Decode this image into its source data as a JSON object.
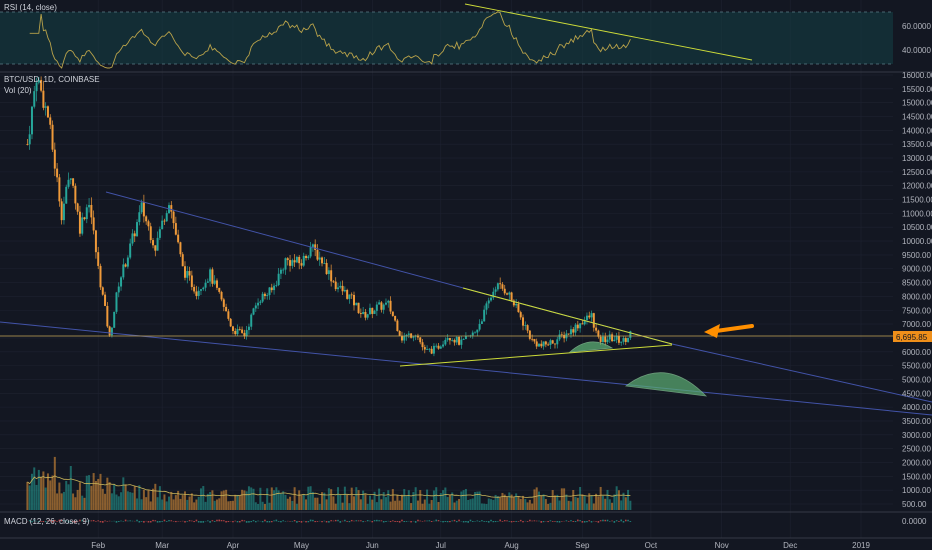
{
  "colors": {
    "background": "#131722",
    "grid": "#1e2230",
    "up": "#26a69a",
    "down": "#ef9a3a",
    "rsi_line": "#b8a24a",
    "rsi_band": "#1b5e63",
    "trend_blue": "#3f51b5",
    "trend_yellow": "#cddc39",
    "price_line": "#c8a95a",
    "price_tag": "#ef8f1a",
    "arrow": "#ff8f00",
    "projection": "#5cae74"
  },
  "rsi_pane": {
    "label": "RSI (14, close)",
    "ticks": [
      "60.0000",
      "40.0000"
    ]
  },
  "price_pane": {
    "symbol_label": "BTC/USD, 1D, COINBASE",
    "volume_label": "Vol (20)",
    "price_tag": "6,695.85"
  },
  "macd_pane": {
    "label": "MACD (12, 26, close, 9)",
    "ticks": [
      "0.0000"
    ]
  },
  "chart_data": {
    "type": "candlestick",
    "title": "BTC/USD, 1D, COINBASE",
    "x_ticks": [
      "Feb",
      "Mar",
      "Apr",
      "May",
      "Jun",
      "Jul",
      "Aug",
      "Sep",
      "Oct",
      "Nov",
      "Dec",
      "2019"
    ],
    "y_ticks": [
      "16000.00",
      "15500.00",
      "15000.00",
      "14500.00",
      "14000.00",
      "13500.00",
      "13000.00",
      "12500.00",
      "12000.00",
      "11500.00",
      "11000.00",
      "10500.00",
      "10000.00",
      "9500.00",
      "9000.00",
      "8500.00",
      "8000.00",
      "7500.00",
      "7000.00",
      "6500.00",
      "6000.00",
      "5500.00",
      "5000.00",
      "4500.00",
      "4000.00",
      "3500.00",
      "3000.00",
      "2500.00",
      "2000.00",
      "1500.00",
      "1000.00",
      "500.00"
    ],
    "ylim": [
      500,
      16000
    ],
    "price_path": [
      [
        "2018-01-01",
        13500
      ],
      [
        "2018-01-05",
        16000
      ],
      [
        "2018-01-10",
        14500
      ],
      [
        "2018-01-16",
        11000
      ],
      [
        "2018-01-20",
        12500
      ],
      [
        "2018-01-24",
        10500
      ],
      [
        "2018-01-28",
        11500
      ],
      [
        "2018-02-01",
        9000
      ],
      [
        "2018-02-06",
        6500
      ],
      [
        "2018-02-10",
        8500
      ],
      [
        "2018-02-14",
        9500
      ],
      [
        "2018-02-20",
        11200
      ],
      [
        "2018-02-26",
        9800
      ],
      [
        "2018-03-04",
        11500
      ],
      [
        "2018-03-10",
        9000
      ],
      [
        "2018-03-16",
        8200
      ],
      [
        "2018-03-22",
        8800
      ],
      [
        "2018-03-28",
        7600
      ],
      [
        "2018-04-01",
        6800
      ],
      [
        "2018-04-06",
        6600
      ],
      [
        "2018-04-12",
        7900
      ],
      [
        "2018-04-18",
        8200
      ],
      [
        "2018-04-24",
        9300
      ],
      [
        "2018-05-01",
        9200
      ],
      [
        "2018-05-05",
        9800
      ],
      [
        "2018-05-10",
        9300
      ],
      [
        "2018-05-16",
        8400
      ],
      [
        "2018-05-22",
        8000
      ],
      [
        "2018-05-28",
        7300
      ],
      [
        "2018-06-03",
        7600
      ],
      [
        "2018-06-08",
        7700
      ],
      [
        "2018-06-14",
        6500
      ],
      [
        "2018-06-20",
        6700
      ],
      [
        "2018-06-24",
        6000
      ],
      [
        "2018-06-29",
        6100
      ],
      [
        "2018-07-04",
        6600
      ],
      [
        "2018-07-10",
        6300
      ],
      [
        "2018-07-16",
        6700
      ],
      [
        "2018-07-20",
        7400
      ],
      [
        "2018-07-25",
        8400
      ],
      [
        "2018-07-30",
        8200
      ],
      [
        "2018-08-04",
        7400
      ],
      [
        "2018-08-10",
        6400
      ],
      [
        "2018-08-14",
        6200
      ],
      [
        "2018-08-20",
        6400
      ],
      [
        "2018-08-26",
        6700
      ],
      [
        "2018-09-01",
        7100
      ],
      [
        "2018-09-05",
        7300
      ],
      [
        "2018-09-08",
        6400
      ],
      [
        "2018-09-13",
        6500
      ],
      [
        "2018-09-19",
        6400
      ],
      [
        "2018-09-22",
        6700
      ]
    ],
    "trend_lines": [
      {
        "name": "upper-resistance",
        "from": [
          "2018-01-28",
          11900
        ],
        "to": [
          "2018-10-15",
          6400
        ]
      },
      {
        "name": "lower-support",
        "from": [
          "2017-12-25",
          7100
        ],
        "to": [
          "2019-01-15",
          3900
        ]
      },
      {
        "name": "rising-support",
        "from": [
          "2018-06-26",
          5750
        ],
        "to": [
          "2018-10-12",
          6450
        ]
      },
      {
        "name": "breakdown-line",
        "from": [
          "2018-10-15",
          6400
        ],
        "to": [
          "2019-01-15",
          4300
        ]
      }
    ],
    "horizontal_level": 6695.85,
    "grid": true
  }
}
